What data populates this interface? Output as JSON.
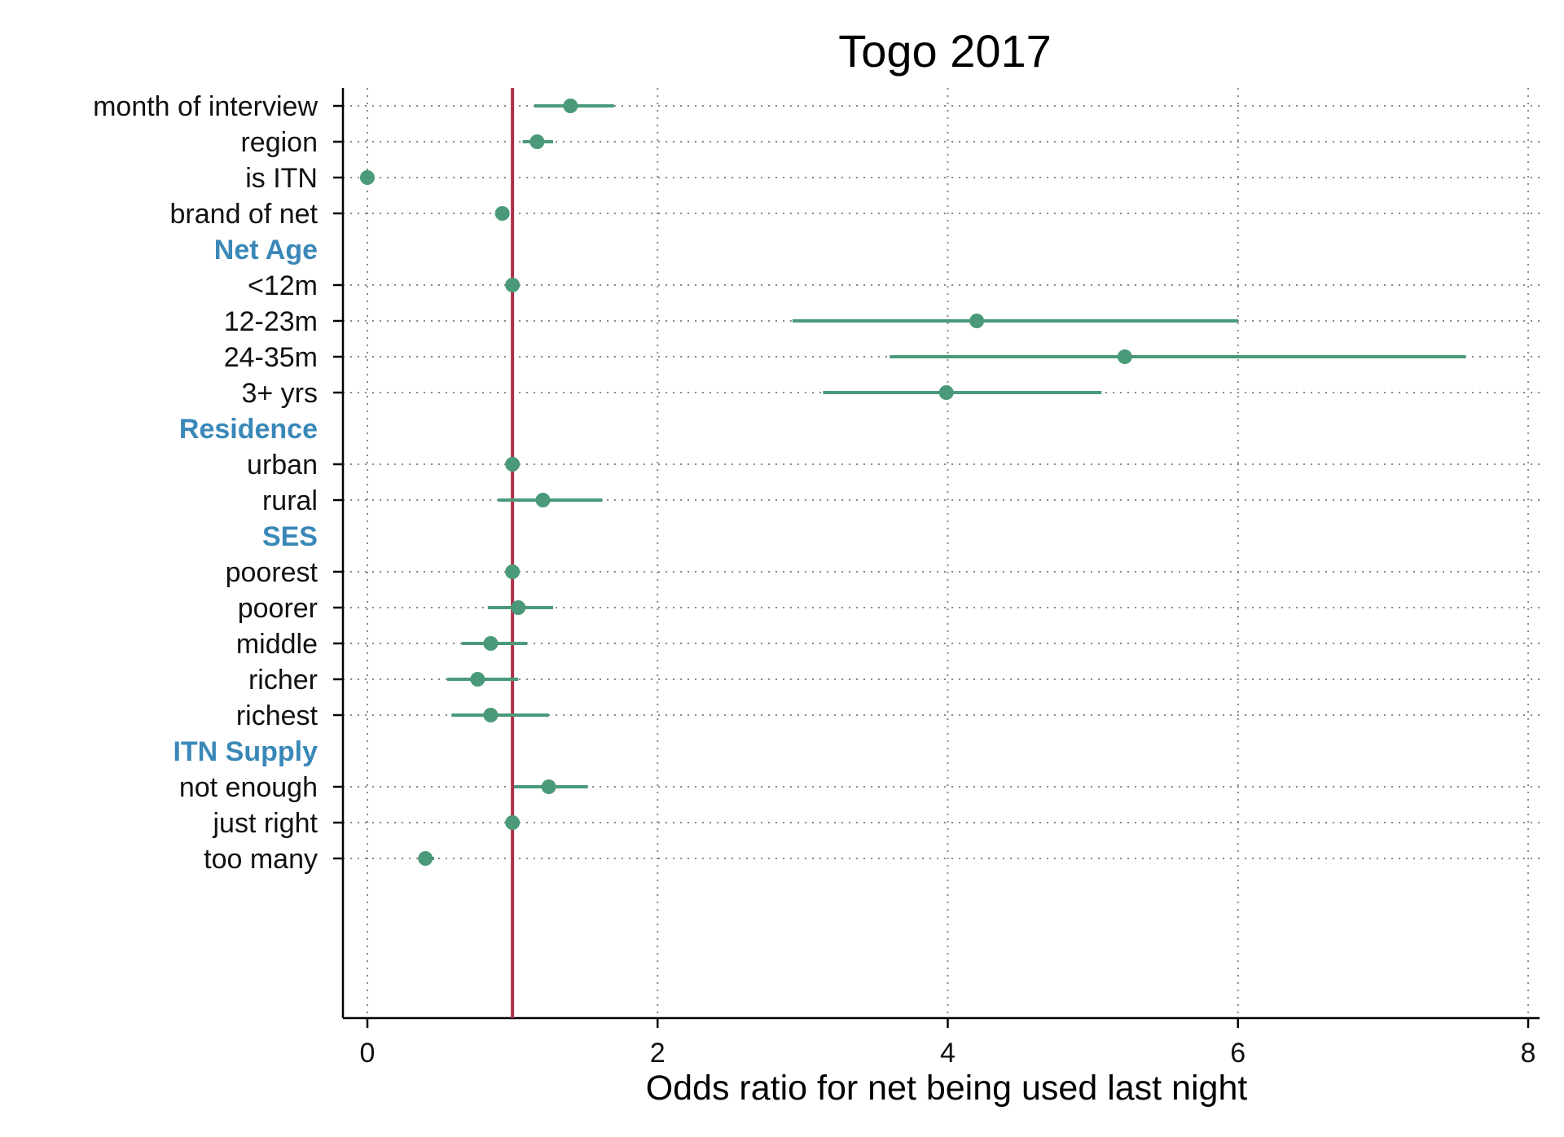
{
  "chart_data": {
    "type": "scatter",
    "title": "Togo 2017",
    "xlabel": "Odds ratio for net being used last night",
    "ylabel": "",
    "xlim": [
      0,
      8
    ],
    "xticks": [
      0,
      2,
      4,
      6,
      8
    ],
    "grid": true,
    "reference_line": 1,
    "colors": {
      "point": "#4a9a7a",
      "reference": "#b03045",
      "header": "#3a88b8",
      "grid": "#888888"
    },
    "rows": [
      {
        "label": "month of interview",
        "or": 1.4,
        "low": 1.15,
        "high": 1.7
      },
      {
        "label": "region",
        "or": 1.17,
        "low": 1.07,
        "high": 1.28
      },
      {
        "label": "is ITN",
        "or": 0.0,
        "low": 0.0,
        "high": 0.01
      },
      {
        "label": "brand of net",
        "or": 0.93,
        "low": 0.9,
        "high": 0.96
      },
      {
        "header": "Net Age"
      },
      {
        "label": "<12m",
        "or": 1.0,
        "low": 1.0,
        "high": 1.0
      },
      {
        "label": "12-23m",
        "or": 4.2,
        "low": 2.93,
        "high": 6.0
      },
      {
        "label": "24-35m",
        "or": 5.22,
        "low": 3.6,
        "high": 7.57
      },
      {
        "label": "3+ yrs",
        "or": 3.99,
        "low": 3.14,
        "high": 5.06
      },
      {
        "header": "Residence"
      },
      {
        "label": "urban",
        "or": 1.0,
        "low": 1.0,
        "high": 1.0
      },
      {
        "label": "rural",
        "or": 1.21,
        "low": 0.9,
        "high": 1.62
      },
      {
        "header": "SES"
      },
      {
        "label": "poorest",
        "or": 1.0,
        "low": 1.0,
        "high": 1.0
      },
      {
        "label": "poorer",
        "or": 1.04,
        "low": 0.83,
        "high": 1.28
      },
      {
        "label": "middle",
        "or": 0.85,
        "low": 0.65,
        "high": 1.1
      },
      {
        "label": "richer",
        "or": 0.76,
        "low": 0.55,
        "high": 1.04
      },
      {
        "label": "richest",
        "or": 0.85,
        "low": 0.58,
        "high": 1.25
      },
      {
        "header": "ITN Supply"
      },
      {
        "label": "not enough",
        "or": 1.25,
        "low": 1.01,
        "high": 1.52
      },
      {
        "label": "just right",
        "or": 1.0,
        "low": 1.0,
        "high": 1.0
      },
      {
        "label": "too many",
        "or": 0.4,
        "low": 0.35,
        "high": 0.46
      }
    ]
  }
}
